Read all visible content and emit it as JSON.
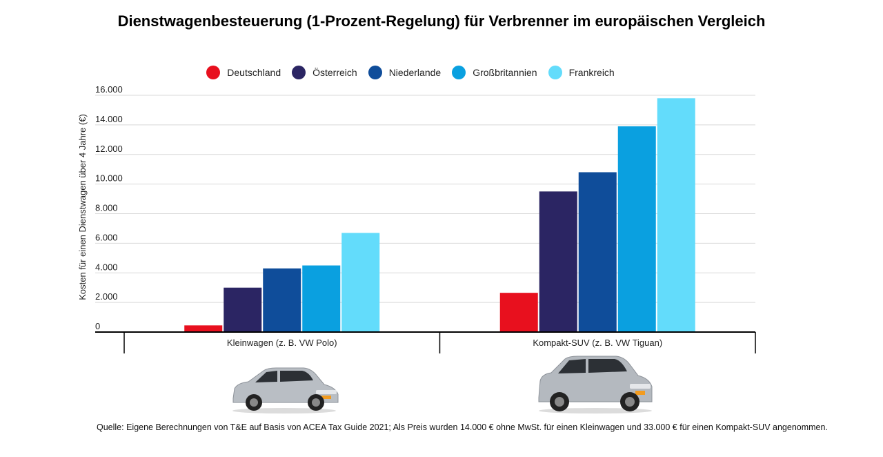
{
  "chart_data": {
    "type": "bar",
    "title": "Dienstwagenbesteuerung (1-Prozent-Regelung) für Verbrenner im europäischen Vergleich",
    "ylabel": "Kosten für einen Dienstwagen über 4 Jahre (€)",
    "xlabel": "",
    "ylim": [
      0,
      16000
    ],
    "yticks": [
      0,
      2000,
      4000,
      6000,
      8000,
      10000,
      12000,
      14000,
      16000
    ],
    "ytick_labels": [
      "0",
      "2.000",
      "4.000",
      "6.000",
      "8.000",
      "10.000",
      "12.000",
      "14.000",
      "16.000"
    ],
    "grid": true,
    "legend_position": "top",
    "categories": [
      "Kleinwagen (z. B. VW Polo)",
      "Kompakt-SUV (z. B. VW Tiguan)"
    ],
    "series": [
      {
        "name": "Deutschland",
        "color": "#e8101e",
        "values": [
          450,
          2650
        ]
      },
      {
        "name": "Österreich",
        "color": "#2b2563",
        "values": [
          3000,
          9500
        ]
      },
      {
        "name": "Niederlande",
        "color": "#0f4d9a",
        "values": [
          4300,
          10800
        ]
      },
      {
        "name": "Großbritannien",
        "color": "#0aa0e0",
        "values": [
          4500,
          13900
        ]
      },
      {
        "name": "Frankreich",
        "color": "#63dcfb",
        "values": [
          6700,
          15800
        ]
      }
    ]
  },
  "source_note": "Quelle: Eigene Berechnungen von T&E  auf Basis von ACEA Tax Guide 2021; Als Preis wurden 14.000 € ohne MwSt. für einen Kleinwagen und 33.000 € für einen Kompakt-SUV angenommen.",
  "car_images": [
    "hatchback-car-icon",
    "compact-suv-car-icon"
  ]
}
